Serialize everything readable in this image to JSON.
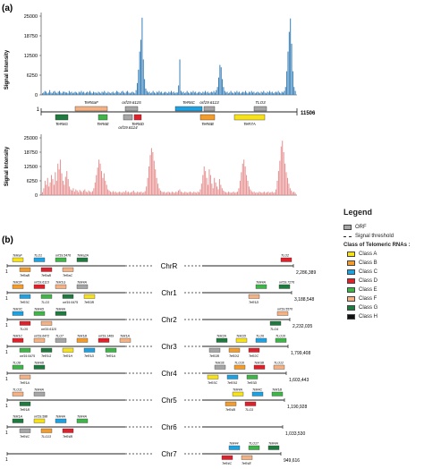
{
  "panel_a": {
    "label": "(a)",
    "ylabel": "Signal Intensity",
    "yticks": [
      "0",
      "6250",
      "12500",
      "18750",
      "25000"
    ],
    "map_end": "11506",
    "map_start": "1",
    "blue_bars": [
      0.02,
      0.03,
      0.05,
      0.04,
      0.02,
      0.03,
      0.06,
      0.03,
      0.02,
      0.04,
      0.05,
      0.03,
      0.02,
      0.04,
      0.05,
      0.03,
      0.02,
      0.04,
      0.04,
      0.03,
      0.03,
      0.02,
      0.05,
      0.03,
      0.04,
      0.02,
      0.03,
      0.04,
      0.03,
      0.02,
      0.04,
      0.03,
      0.05,
      0.03,
      0.04,
      0.02,
      0.03,
      0.04,
      0.03,
      0.05,
      0.03,
      0.02,
      0.04,
      0.03,
      0.03,
      0.02,
      0.04,
      0.03,
      0.02,
      0.04,
      0.03,
      0.05,
      0.03,
      0.02,
      0.04,
      0.03,
      0.02,
      0.03,
      0.04,
      0.02,
      0.03,
      0.05,
      0.04,
      0.03,
      0.02,
      0.04,
      0.05,
      0.03,
      0.02,
      0.04,
      0.05,
      0.03,
      0.02,
      0.03,
      0.04,
      0.03,
      0.02,
      0.06,
      0.15,
      0.32,
      0.55,
      0.7,
      0.98,
      0.45,
      0.2,
      0.08,
      0.05,
      0.03,
      0.04,
      0.02,
      0.03,
      0.05,
      0.03,
      0.02,
      0.04,
      0.03,
      0.05,
      0.03,
      0.04,
      0.02,
      0.03,
      0.04,
      0.03,
      0.02,
      0.04,
      0.03,
      0.05,
      0.03,
      0.04,
      0.02,
      0.03,
      0.03,
      0.12,
      0.45,
      0.05,
      0.03,
      0.04,
      0.02,
      0.03,
      0.05,
      0.03,
      0.02,
      0.04,
      0.03,
      0.05,
      0.03,
      0.04,
      0.02,
      0.03,
      0.04,
      0.03,
      0.02,
      0.04,
      0.03,
      0.05,
      0.03,
      0.04,
      0.02,
      0.03,
      0.04,
      0.03,
      0.05,
      0.03,
      0.06,
      0.1,
      0.22,
      0.38,
      0.35,
      0.2,
      0.1,
      0.05,
      0.03,
      0.04,
      0.02,
      0.03,
      0.05,
      0.03,
      0.02,
      0.04,
      0.03,
      0.05,
      0.03,
      0.04,
      0.02,
      0.03,
      0.04,
      0.03,
      0.05,
      0.03,
      0.02,
      0.04,
      0.03,
      0.05,
      0.03,
      0.04,
      0.02,
      0.03,
      0.04,
      0.03,
      0.02,
      0.04,
      0.03,
      0.05,
      0.03,
      0.02,
      0.04,
      0.03,
      0.05,
      0.03,
      0.04,
      0.02,
      0.03,
      0.04,
      0.03,
      0.05,
      0.03,
      0.02,
      0.04,
      0.03,
      0.05,
      0.1,
      0.3,
      0.55,
      0.8,
      0.97,
      0.65,
      0.3,
      0.1,
      0.05
    ],
    "pink_bars": [
      0.05,
      0.12,
      0.25,
      0.18,
      0.3,
      0.15,
      0.22,
      0.35,
      0.28,
      0.18,
      0.4,
      0.25,
      0.55,
      0.45,
      0.62,
      0.38,
      0.25,
      0.18,
      0.32,
      0.42,
      0.28,
      0.15,
      0.1,
      0.08,
      0.12,
      0.06,
      0.1,
      0.08,
      0.05,
      0.09,
      0.07,
      0.05,
      0.08,
      0.1,
      0.06,
      0.05,
      0.08,
      0.06,
      0.05,
      0.07,
      0.12,
      0.22,
      0.35,
      0.48,
      0.62,
      0.55,
      0.42,
      0.3,
      0.38,
      0.25,
      0.18,
      0.1,
      0.08,
      0.06,
      0.05,
      0.07,
      0.05,
      0.06,
      0.04,
      0.05,
      0.06,
      0.05,
      0.04,
      0.06,
      0.05,
      0.08,
      0.05,
      0.06,
      0.04,
      0.05,
      0.06,
      0.08,
      0.05,
      0.04,
      0.06,
      0.05,
      0.05,
      0.06,
      0.04,
      0.05,
      0.07,
      0.15,
      0.3,
      0.5,
      0.7,
      0.82,
      0.75,
      0.6,
      0.45,
      0.3,
      0.2,
      0.12,
      0.08,
      0.06,
      0.05,
      0.06,
      0.04,
      0.05,
      0.06,
      0.05,
      0.04,
      0.06,
      0.05,
      0.04,
      0.06,
      0.05,
      0.08,
      0.1,
      0.06,
      0.05,
      0.04,
      0.06,
      0.05,
      0.04,
      0.05,
      0.06,
      0.05,
      0.04,
      0.06,
      0.05,
      0.04,
      0.06,
      0.05,
      0.1,
      0.2,
      0.35,
      0.5,
      0.42,
      0.3,
      0.18,
      0.45,
      0.35,
      0.2,
      0.12,
      0.3,
      0.22,
      0.15,
      0.1,
      0.28,
      0.18,
      0.12,
      0.08,
      0.06,
      0.05,
      0.04,
      0.06,
      0.05,
      0.04,
      0.05,
      0.06,
      0.04,
      0.05,
      0.06,
      0.12,
      0.25,
      0.4,
      0.55,
      0.62,
      0.5,
      0.35,
      0.25,
      0.15,
      0.1,
      0.07,
      0.05,
      0.06,
      0.04,
      0.05,
      0.04,
      0.06,
      0.05,
      0.04,
      0.05,
      0.06,
      0.04,
      0.05,
      0.06,
      0.04,
      0.05,
      0.06,
      0.04,
      0.05,
      0.1,
      0.25,
      0.42,
      0.6,
      0.85,
      0.95,
      0.75,
      0.55,
      0.4,
      0.3,
      0.2,
      0.12,
      0.08,
      0.05,
      0.06,
      0.04
    ],
    "orf_top": [
      {
        "label": "TeR6aF",
        "color": "#f4b183"
      },
      {
        "label": "orf19.6115",
        "color": "#a6a6a6"
      },
      {
        "label": "TeR6C",
        "color": "#1ea1e0"
      },
      {
        "label": "orf19.6113",
        "color": "#a6a6a6"
      },
      {
        "label": "TLO3",
        "color": "#a6a6a6"
      }
    ],
    "orf_bottom": [
      {
        "label": "TeR6G",
        "color": "#1e7a3e"
      },
      {
        "label": "TeR6E",
        "color": "#3fb449"
      },
      {
        "label": "orf19.6114",
        "color": "#a6a6a6"
      },
      {
        "label": "TeR6D",
        "color": "#e0202a"
      },
      {
        "label": "TeR6B",
        "color": "#f39c2b"
      },
      {
        "label": "TeR7A",
        "color": "#f7e21a"
      }
    ]
  },
  "panel_b": {
    "label": "(b)",
    "start": "1",
    "chromosomes": [
      {
        "name": "ChrR",
        "end": "2,286,389",
        "left_labels": [
          "TeRaF",
          "TeRaB",
          "TLO1",
          "TeRaB",
          "orf19.5476",
          "TeRaC",
          "TeRa2A"
        ],
        "right_labels": [
          "TLO2"
        ]
      },
      {
        "name": "Chr1",
        "end": "3,188,548",
        "left_labels": [
          "TeR2F",
          "TeR3C",
          "orf19.6113",
          "TLO3",
          "TeR1G",
          "orf19.5475",
          "TeR4A",
          "TeR2B"
        ],
        "right_labels": [
          "TeR4A",
          "TeR1D",
          "orf19.7276"
        ]
      },
      {
        "name": "Chr2",
        "end": "2,232,035",
        "left_labels": [
          "TeR3C",
          "TLO5",
          "TeR4D",
          "orf19.6115",
          "TeR4A"
        ],
        "right_labels": [
          "orf19.5570",
          "TLO4"
        ]
      },
      {
        "name": "Chr3",
        "end": "1,799,408",
        "left_labels": [
          "TeR1C",
          "orf19.5475",
          "orf19.6472",
          "TeR1G",
          "TLO7",
          "TeR1H",
          "TeR1B",
          "TeR1D",
          "orf19.1469",
          "TeR1A",
          "TeR1A"
        ],
        "right_labels": [
          "TeR2A",
          "TeR2B",
          "TeR2D",
          "TeR2G",
          "TLO6",
          "TeR2C",
          "TLO10"
        ]
      },
      {
        "name": "Chr4",
        "end": "1,603,443",
        "left_labels": [
          "TLO8",
          "TeR1A",
          "TeR4B"
        ],
        "right_labels": [
          "TeR2E",
          "TeR3C",
          "TLO10",
          "TeR3G",
          "TeR3B",
          "TeR3D",
          "TLO12"
        ]
      },
      {
        "name": "Chr5",
        "end": "1,190,928",
        "left_labels": [
          "TLO11",
          "TeR1B",
          "TeR4A"
        ],
        "right_labels": [
          "TeR4A",
          "TeR4B",
          "TeR4C",
          "TLO3",
          "TeR1B"
        ]
      },
      {
        "name": "Chr6",
        "end": "1,033,530",
        "left_labels": [
          "TeR1A",
          "TeR4C",
          "orf19.588",
          "TLO13",
          "TeR4A",
          "TeR4B",
          "TeR4A"
        ],
        "right_labels": []
      },
      {
        "name": "Chr7",
        "end": "949,616",
        "left_labels": [],
        "right_labels": [
          "TeR44",
          "TeR4C",
          "TLO17",
          "TeR4E",
          "TeR4A"
        ]
      }
    ]
  },
  "legend": {
    "title": "Legend",
    "orf": "ORF",
    "threshold": "Signal threshold",
    "class_title": "Class of Telomeric RNAs :",
    "classes": [
      {
        "label": "Class A",
        "color": "#f7e21a"
      },
      {
        "label": "Class B",
        "color": "#f39c2b"
      },
      {
        "label": "Class C",
        "color": "#1ea1e0"
      },
      {
        "label": "Class D",
        "color": "#e0202a"
      },
      {
        "label": "Class E",
        "color": "#3fb449"
      },
      {
        "label": "Class F",
        "color": "#f4b183"
      },
      {
        "label": "Class G",
        "color": "#1e7a3e"
      },
      {
        "label": "Class H",
        "color": "#111111"
      }
    ]
  },
  "colors": {
    "blue": "#2e79b5",
    "pink": "#e79090",
    "orf": "#a6a6a6"
  }
}
